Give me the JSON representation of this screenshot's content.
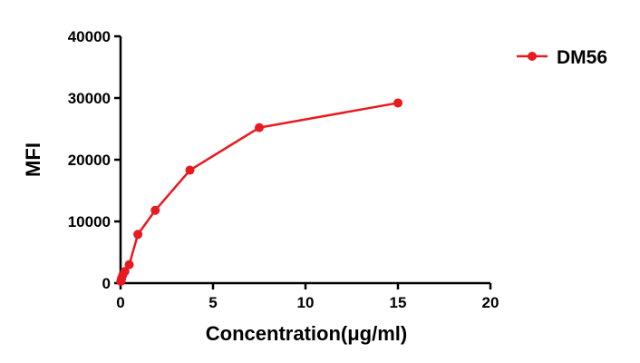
{
  "chart_data": {
    "type": "line",
    "title": "",
    "xlabel": "Concentration(μg/ml)",
    "ylabel": "MFI",
    "xlim": [
      0,
      20
    ],
    "ylim": [
      0,
      40000
    ],
    "x_ticks": [
      0,
      5,
      10,
      15,
      20
    ],
    "y_ticks": [
      0,
      10000,
      20000,
      30000,
      40000
    ],
    "grid": false,
    "legend_position": "top-right",
    "series": [
      {
        "name": "DM56",
        "color": "#e8191f",
        "marker": "circle",
        "x": [
          0.0146,
          0.0293,
          0.0586,
          0.117,
          0.234,
          0.469,
          0.9375,
          1.875,
          3.75,
          7.5,
          15
        ],
        "y": [
          300,
          500,
          800,
          1300,
          1900,
          3000,
          7900,
          11800,
          18300,
          25200,
          29200
        ]
      }
    ]
  }
}
